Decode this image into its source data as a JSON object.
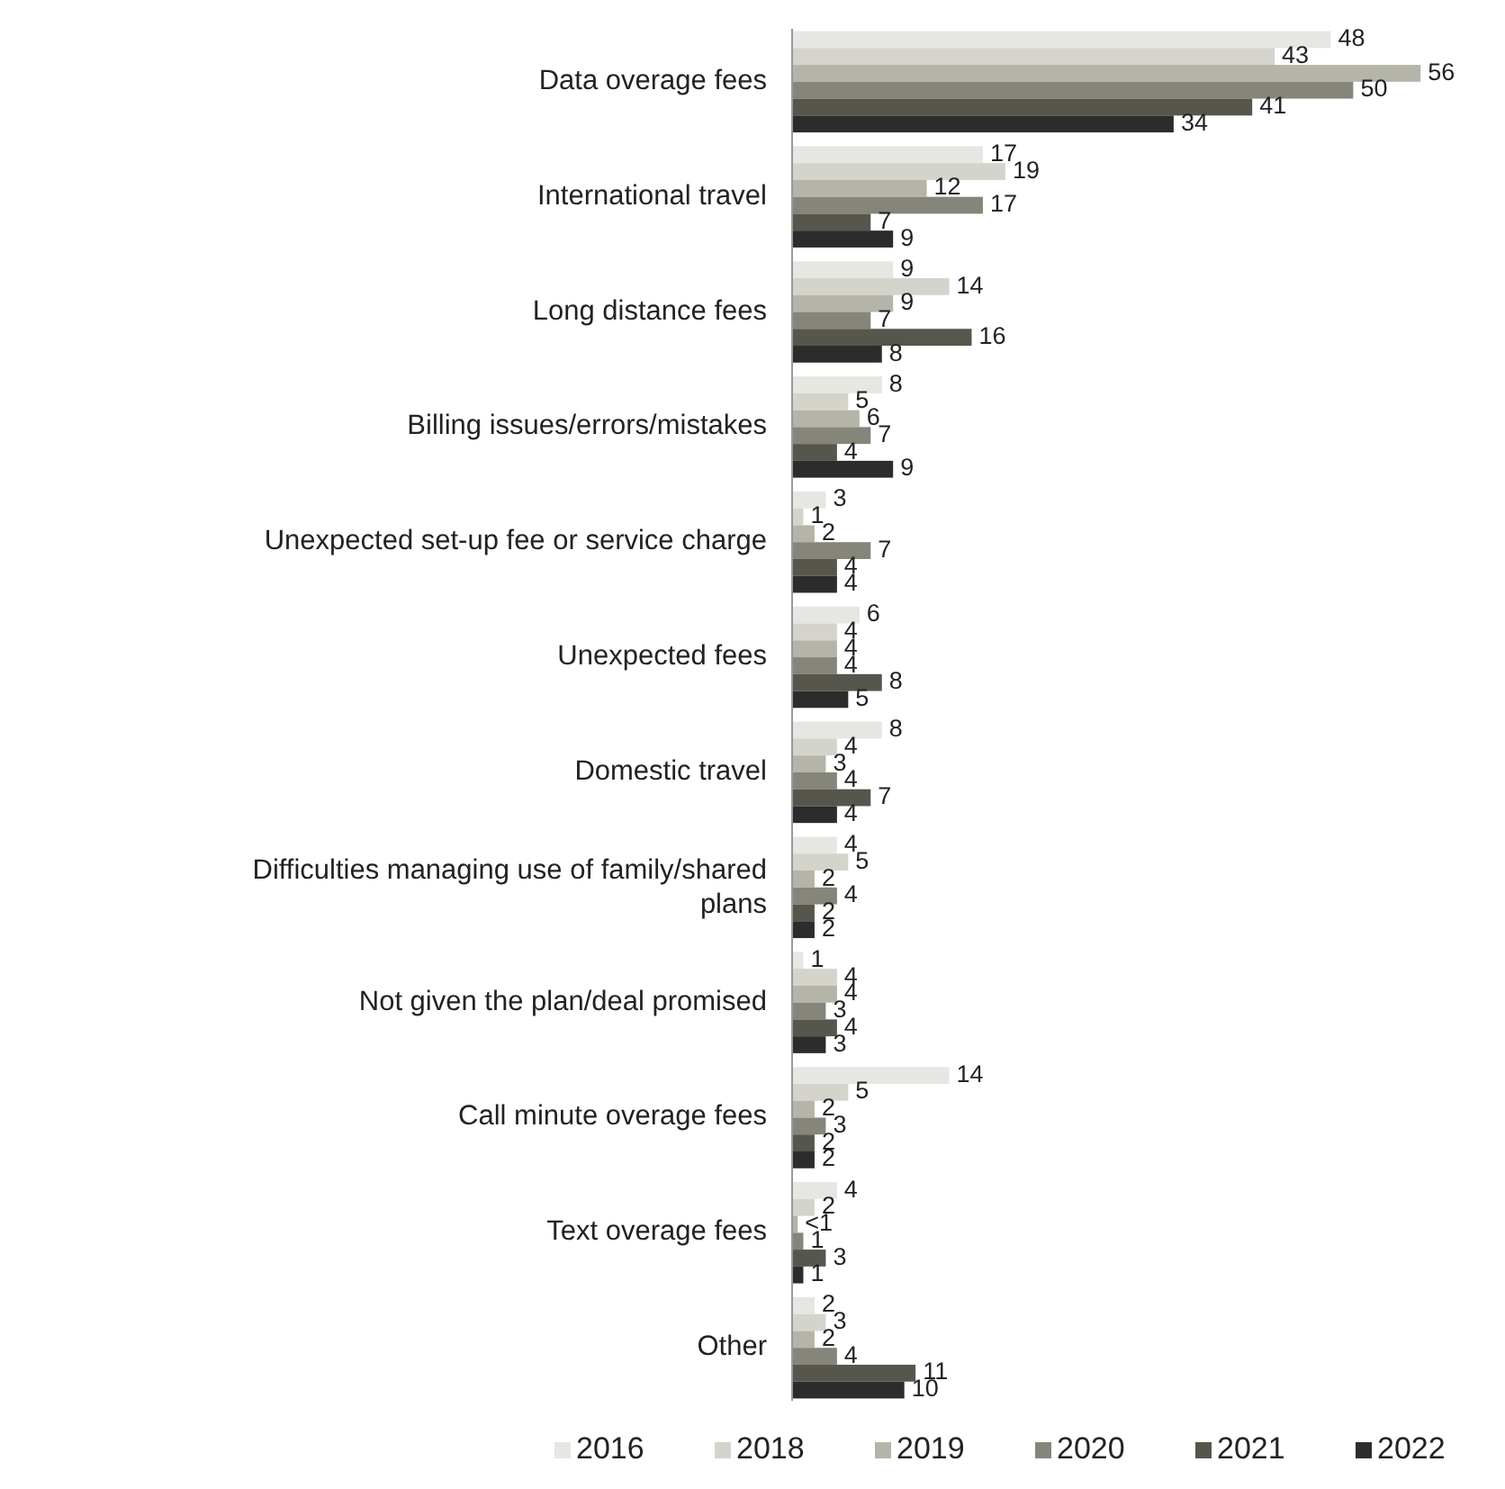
{
  "chart_data": {
    "type": "bar",
    "orientation": "horizontal",
    "data_labels": true,
    "legend": "bottom",
    "categories": [
      "Data overage fees",
      "International travel",
      "Long distance fees",
      "Billing issues/errors/mistakes",
      "Unexpected set-up fee or service charge",
      "Unexpected fees",
      "Domestic travel",
      "Difficulties managing use of family/shared plans",
      "Not given the plan/deal promised",
      "Call minute overage fees",
      "Text overage fees",
      "Other"
    ],
    "series": [
      {
        "name": "2016",
        "color": "#e6e6e2",
        "values": [
          48,
          17,
          9,
          8,
          3,
          6,
          8,
          4,
          1,
          14,
          4,
          2
        ]
      },
      {
        "name": "2018",
        "color": "#d4d4cc",
        "values": [
          43,
          19,
          14,
          5,
          1,
          4,
          4,
          5,
          4,
          5,
          2,
          3
        ]
      },
      {
        "name": "2019",
        "color": "#b4b4a8",
        "values": [
          56,
          12,
          9,
          6,
          2,
          4,
          3,
          2,
          4,
          2,
          0.5,
          2
        ],
        "value_labels": [
          "56",
          "12",
          "9",
          "6",
          "2",
          "4",
          "3",
          "2",
          "4",
          "2",
          "<1",
          "2"
        ]
      },
      {
        "name": "2020",
        "color": "#85857a",
        "values": [
          50,
          17,
          7,
          7,
          7,
          4,
          4,
          4,
          3,
          3,
          1,
          4
        ]
      },
      {
        "name": "2021",
        "color": "#56564c",
        "values": [
          41,
          7,
          16,
          4,
          4,
          8,
          7,
          2,
          4,
          2,
          3,
          11
        ]
      },
      {
        "name": "2022",
        "color": "#2c2c2c",
        "values": [
          34,
          9,
          8,
          9,
          4,
          5,
          4,
          2,
          3,
          2,
          1,
          10
        ]
      }
    ]
  }
}
